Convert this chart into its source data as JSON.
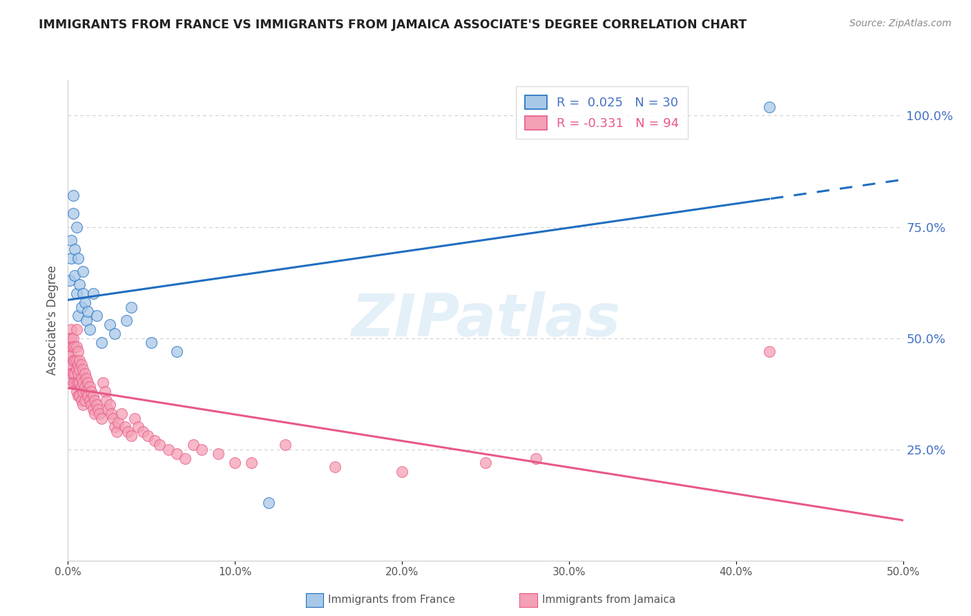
{
  "title": "IMMIGRANTS FROM FRANCE VS IMMIGRANTS FROM JAMAICA ASSOCIATE'S DEGREE CORRELATION CHART",
  "source_text": "Source: ZipAtlas.com",
  "ylabel": "Associate's Degree",
  "right_ytick_labels": [
    "100.0%",
    "75.0%",
    "50.0%",
    "25.0%"
  ],
  "right_ytick_values": [
    1.0,
    0.75,
    0.5,
    0.25
  ],
  "xtick_labels": [
    "0.0%",
    "10.0%",
    "20.0%",
    "30.0%",
    "40.0%",
    "50.0%"
  ],
  "xtick_values": [
    0.0,
    0.1,
    0.2,
    0.3,
    0.4,
    0.5
  ],
  "xlim": [
    0.0,
    0.5
  ],
  "ylim": [
    0.0,
    1.08
  ],
  "france_color": "#a8c8e8",
  "jamaica_color": "#f4a0b5",
  "france_line_color": "#1f6ec0",
  "jamaica_line_color": "#e85888",
  "legend_label_france": "R =  0.025   N = 30",
  "legend_label_jamaica": "R = -0.331   N = 94",
  "france_scatter_x": [
    0.001,
    0.002,
    0.002,
    0.003,
    0.003,
    0.004,
    0.004,
    0.005,
    0.005,
    0.006,
    0.006,
    0.007,
    0.008,
    0.009,
    0.009,
    0.01,
    0.011,
    0.012,
    0.013,
    0.015,
    0.017,
    0.02,
    0.025,
    0.028,
    0.035,
    0.038,
    0.05,
    0.065,
    0.12,
    0.42
  ],
  "france_scatter_y": [
    0.63,
    0.68,
    0.72,
    0.78,
    0.82,
    0.7,
    0.64,
    0.75,
    0.6,
    0.68,
    0.55,
    0.62,
    0.57,
    0.6,
    0.65,
    0.58,
    0.54,
    0.56,
    0.52,
    0.6,
    0.55,
    0.49,
    0.53,
    0.51,
    0.54,
    0.57,
    0.49,
    0.47,
    0.13,
    1.02
  ],
  "jamaica_scatter_x": [
    0.001,
    0.001,
    0.001,
    0.001,
    0.002,
    0.002,
    0.002,
    0.002,
    0.002,
    0.003,
    0.003,
    0.003,
    0.003,
    0.003,
    0.004,
    0.004,
    0.004,
    0.004,
    0.005,
    0.005,
    0.005,
    0.005,
    0.005,
    0.005,
    0.006,
    0.006,
    0.006,
    0.006,
    0.006,
    0.007,
    0.007,
    0.007,
    0.007,
    0.008,
    0.008,
    0.008,
    0.008,
    0.009,
    0.009,
    0.009,
    0.009,
    0.01,
    0.01,
    0.01,
    0.011,
    0.011,
    0.012,
    0.012,
    0.013,
    0.013,
    0.014,
    0.014,
    0.015,
    0.015,
    0.016,
    0.016,
    0.017,
    0.018,
    0.019,
    0.02,
    0.021,
    0.022,
    0.023,
    0.024,
    0.025,
    0.026,
    0.027,
    0.028,
    0.029,
    0.03,
    0.032,
    0.034,
    0.036,
    0.038,
    0.04,
    0.042,
    0.045,
    0.048,
    0.052,
    0.055,
    0.06,
    0.065,
    0.07,
    0.075,
    0.08,
    0.09,
    0.1,
    0.11,
    0.13,
    0.16,
    0.2,
    0.25,
    0.28,
    0.42
  ],
  "jamaica_scatter_y": [
    0.5,
    0.48,
    0.46,
    0.44,
    0.52,
    0.5,
    0.46,
    0.44,
    0.42,
    0.5,
    0.48,
    0.45,
    0.42,
    0.4,
    0.48,
    0.45,
    0.42,
    0.4,
    0.52,
    0.48,
    0.45,
    0.43,
    0.4,
    0.38,
    0.47,
    0.44,
    0.42,
    0.4,
    0.37,
    0.45,
    0.43,
    0.4,
    0.37,
    0.44,
    0.41,
    0.39,
    0.36,
    0.43,
    0.4,
    0.38,
    0.35,
    0.42,
    0.39,
    0.36,
    0.41,
    0.38,
    0.4,
    0.37,
    0.39,
    0.36,
    0.38,
    0.35,
    0.37,
    0.34,
    0.36,
    0.33,
    0.35,
    0.34,
    0.33,
    0.32,
    0.4,
    0.38,
    0.36,
    0.34,
    0.35,
    0.33,
    0.32,
    0.3,
    0.29,
    0.31,
    0.33,
    0.3,
    0.29,
    0.28,
    0.32,
    0.3,
    0.29,
    0.28,
    0.27,
    0.26,
    0.25,
    0.24,
    0.23,
    0.26,
    0.25,
    0.24,
    0.22,
    0.22,
    0.26,
    0.21,
    0.2,
    0.22,
    0.23,
    0.47
  ],
  "watermark_text": "ZIPatlas",
  "background_color": "#ffffff",
  "grid_color": "#cccccc"
}
